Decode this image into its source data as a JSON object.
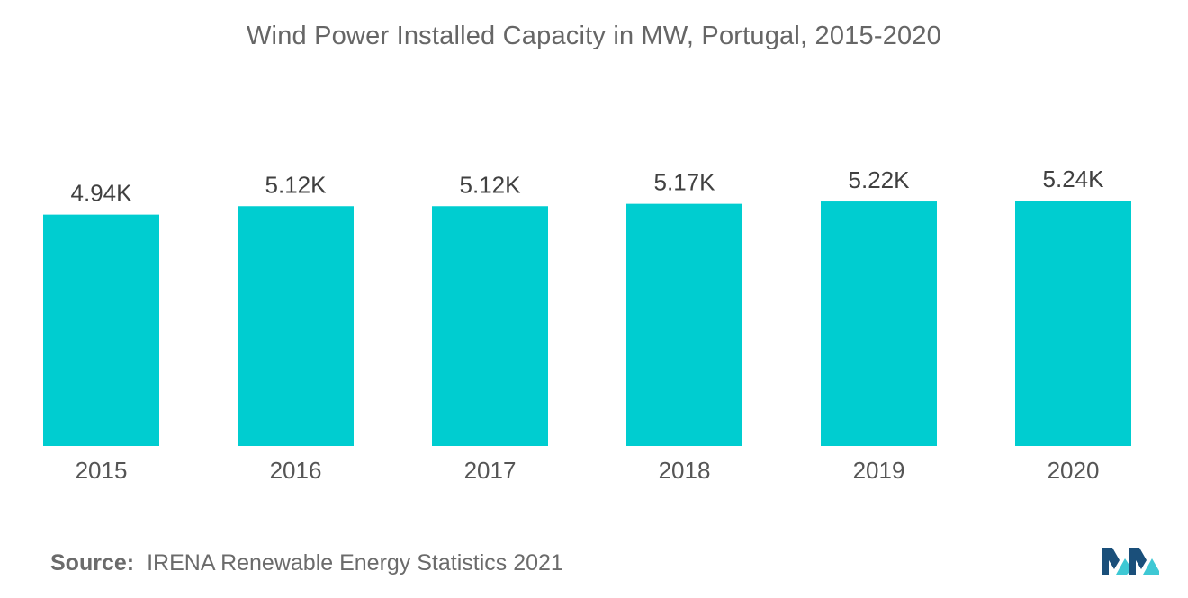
{
  "title": "Wind Power Installed Capacity in MW, Portugal, 2015-2020",
  "source": {
    "label": "Source:",
    "text": "IRENA Renewable Energy Statistics 2021"
  },
  "colors": {
    "bar": "#00CDD0",
    "logo_dark": "#1A4F7A",
    "logo_light": "#3EC8D4"
  },
  "logo": {
    "icon": "mordor-intelligence-logo-icon"
  },
  "chart_data": {
    "type": "bar",
    "title": "Wind Power Installed Capacity in MW, Portugal, 2015-2020",
    "categories": [
      "2015",
      "2016",
      "2017",
      "2018",
      "2019",
      "2020"
    ],
    "values": [
      4940,
      5120,
      5120,
      5170,
      5220,
      5240
    ],
    "labels": [
      "4.94K",
      "5.12K",
      "5.12K",
      "5.17K",
      "5.22K",
      "5.24K"
    ],
    "xlabel": "",
    "ylabel": "",
    "ylim": [
      0,
      5240
    ],
    "grid": false,
    "legend": "none"
  }
}
